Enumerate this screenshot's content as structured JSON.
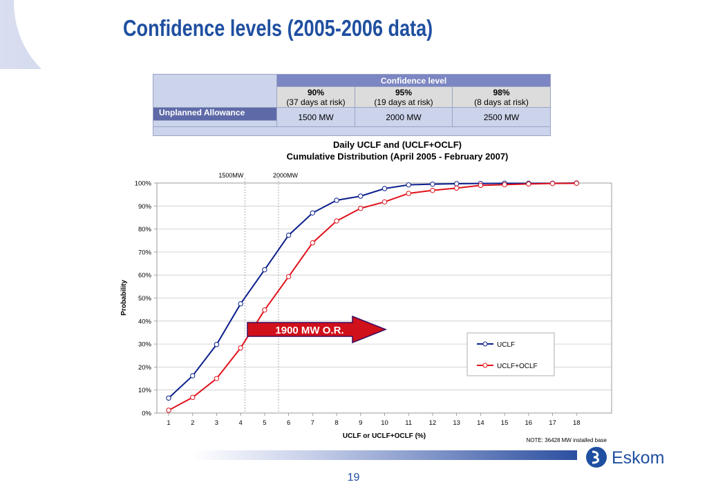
{
  "slide": {
    "title": "Confidence levels (2005-2006 data)",
    "page_number": "19",
    "logo_text": "Eskom"
  },
  "table": {
    "header": "Confidence level",
    "columns": [
      {
        "pct": "90%",
        "risk": "(37 days at risk)"
      },
      {
        "pct": "95%",
        "risk": "(19 days at risk)"
      },
      {
        "pct": "98%",
        "risk": "(8 days at risk)"
      }
    ],
    "row_label": "Unplanned Allowance",
    "values": [
      "1500 MW",
      "2000 MW",
      "2500 MW"
    ]
  },
  "chart_data": {
    "type": "line",
    "title": "Daily UCLF and (UCLF+OCLF)",
    "subtitle": "Cumulative Distribution (April 2005 - February 2007)",
    "xlabel": "UCLF or UCLF+OCLF (%)",
    "ylabel": "Probability",
    "x": [
      1,
      2,
      3,
      4,
      5,
      6,
      7,
      8,
      9,
      10,
      11,
      12,
      13,
      14,
      15,
      16,
      17,
      18
    ],
    "x_ticks": [
      "1",
      "2",
      "3",
      "4",
      "5",
      "6",
      "7",
      "8",
      "9",
      "10",
      "11",
      "12",
      "13",
      "14",
      "15",
      "16",
      "17",
      "18"
    ],
    "y_ticks": [
      "0%",
      "10%",
      "20%",
      "30%",
      "40%",
      "50%",
      "60%",
      "70%",
      "80%",
      "90%",
      "100%"
    ],
    "ylim": [
      0,
      100
    ],
    "series": [
      {
        "name": "UCLF",
        "color": "#0b1f8c",
        "values": [
          6.5,
          16.2,
          29.8,
          47.5,
          62.3,
          77.3,
          87.0,
          92.5,
          94.3,
          97.6,
          99.2,
          99.5,
          99.7,
          99.8,
          99.9,
          99.9,
          99.9,
          100.0
        ]
      },
      {
        "name": "UCLF+OCLF",
        "color": "#e0101a",
        "values": [
          1.2,
          6.8,
          15.0,
          28.3,
          44.8,
          59.3,
          74.0,
          83.5,
          89.0,
          91.8,
          95.5,
          96.8,
          97.8,
          99.0,
          99.3,
          99.6,
          99.8,
          99.9
        ]
      }
    ],
    "reference_lines": [
      {
        "label": "1500MW",
        "x": 4.18
      },
      {
        "label": "2000MW",
        "x": 5.58
      }
    ],
    "annotation": {
      "text": "1900 MW O.R."
    },
    "note": "NOTE: 36428 MW installed base",
    "grid": true,
    "legend_position": "bottom-right"
  }
}
